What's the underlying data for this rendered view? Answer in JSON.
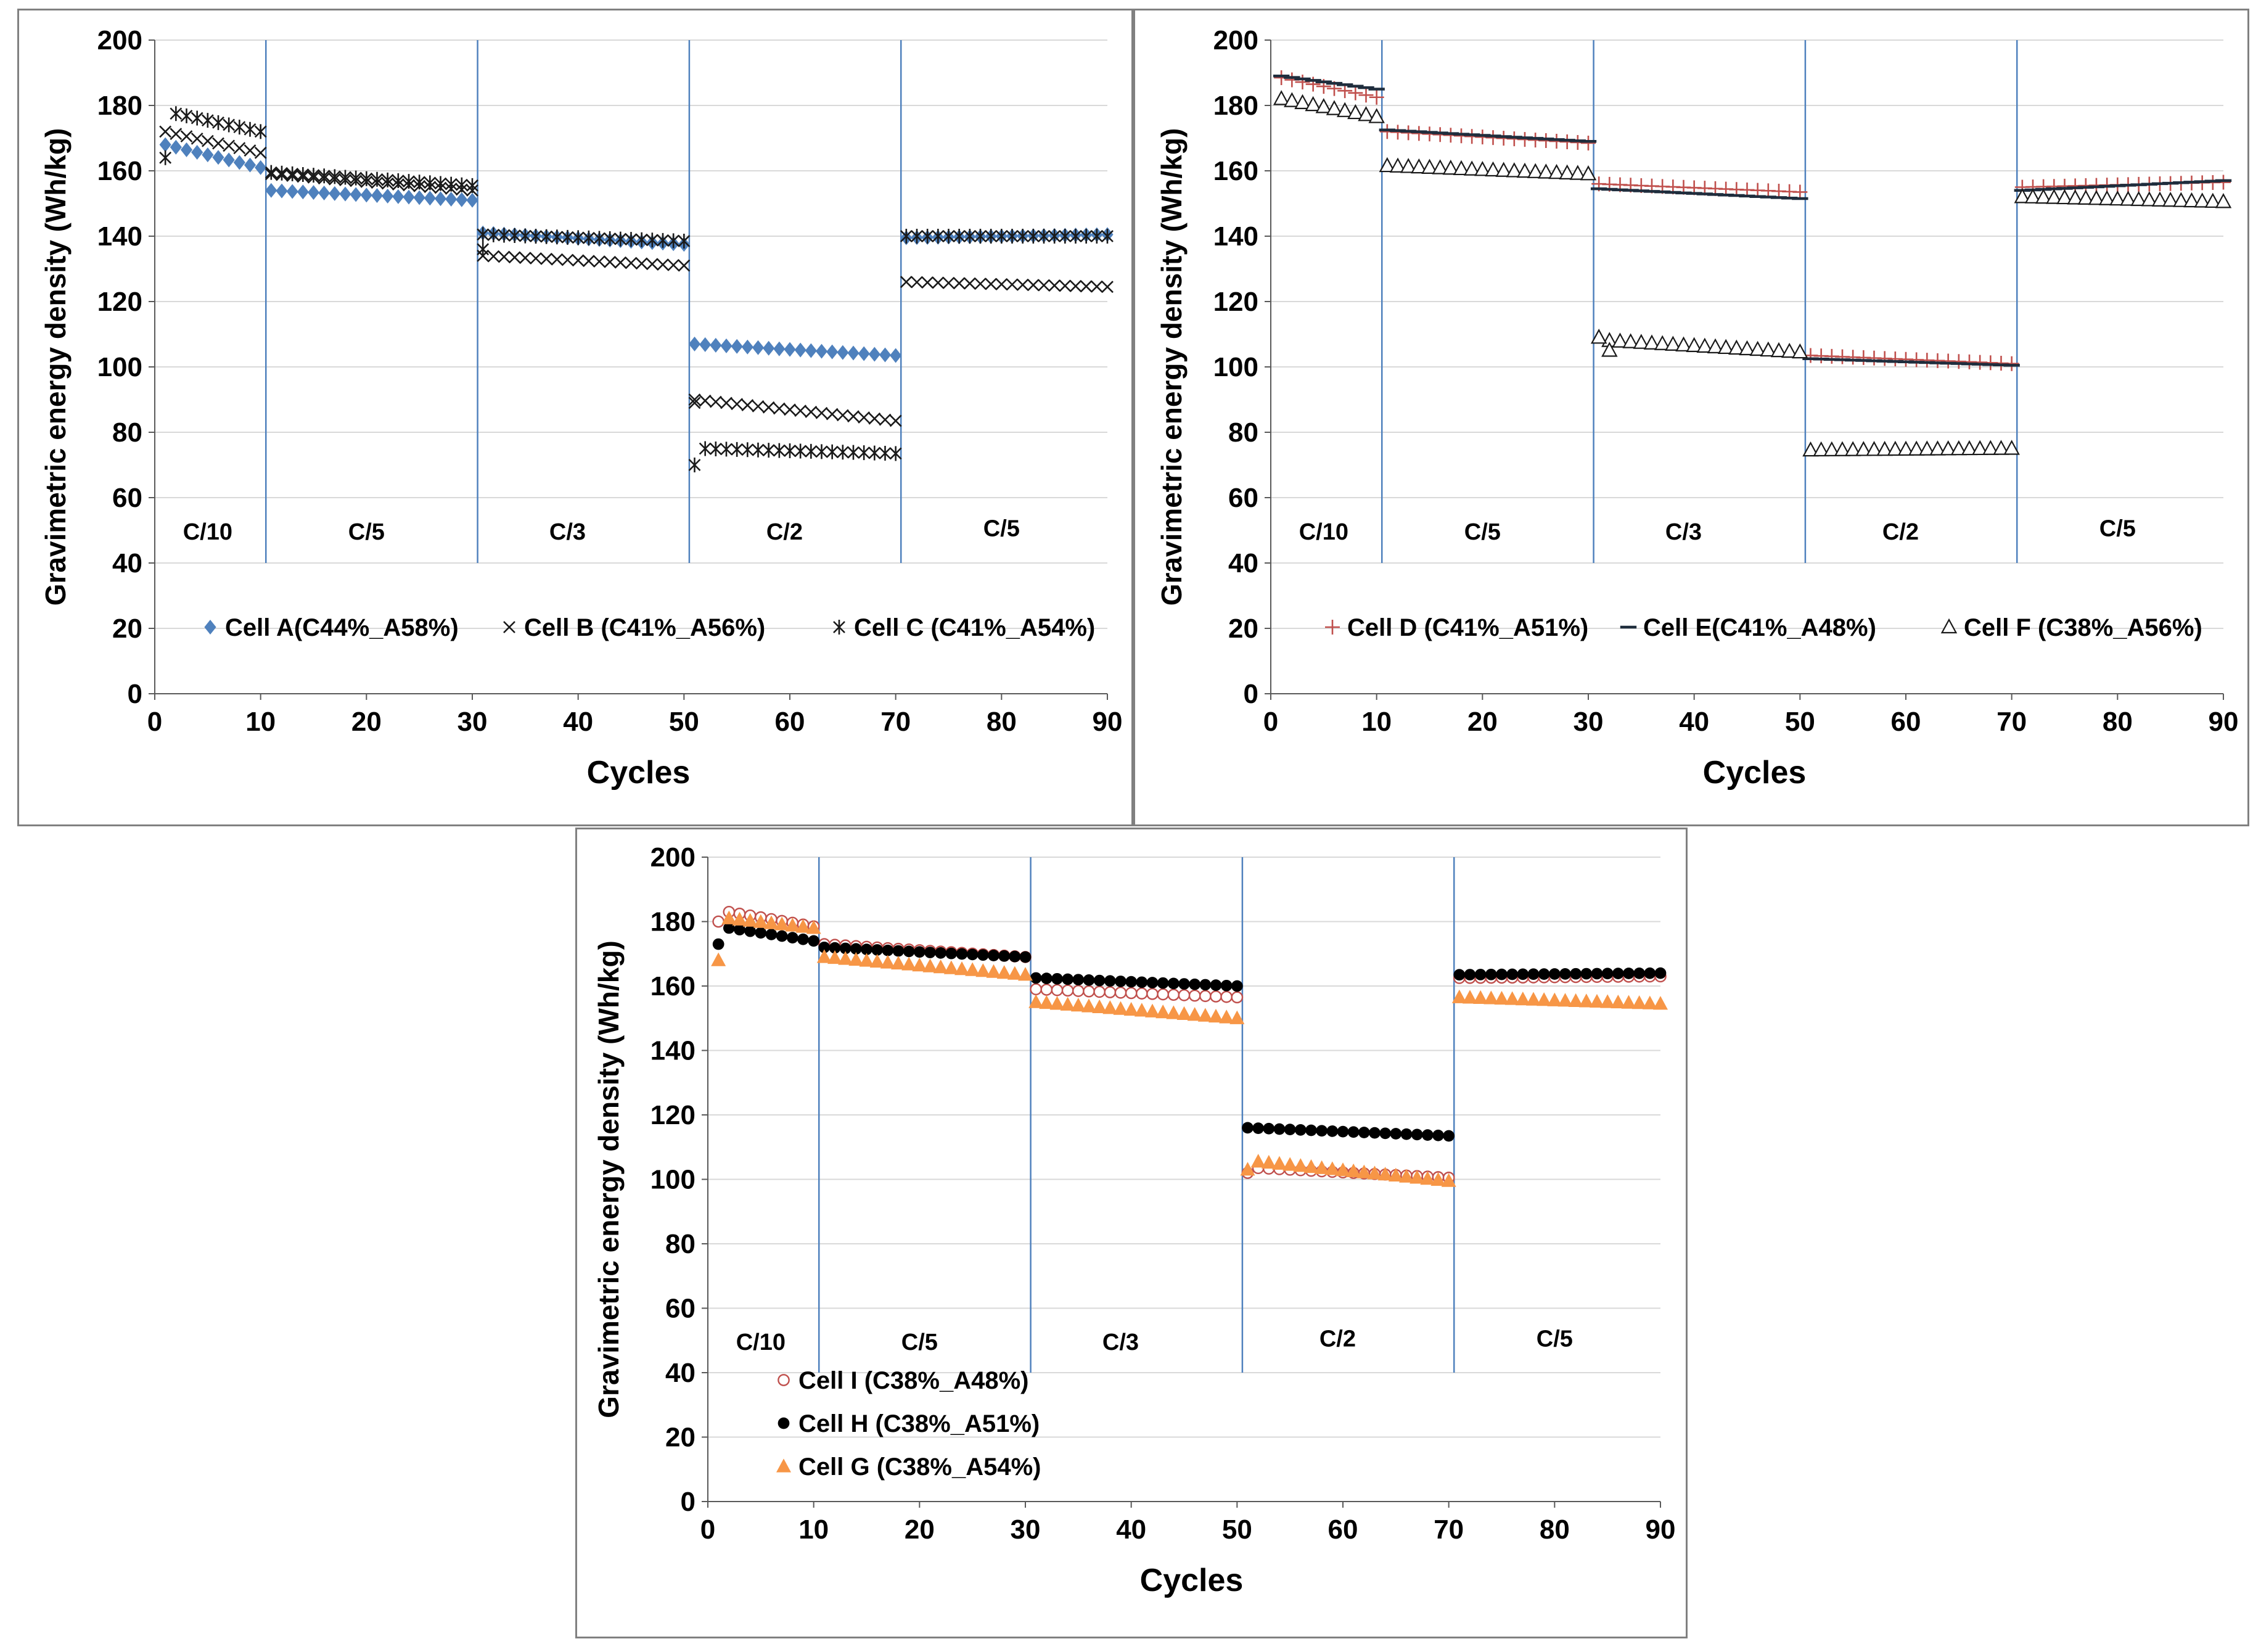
{
  "chart_data": [
    {
      "type": "scatter",
      "xlabel": "Cycles",
      "ylabel": "Gravimetric energy density (Wh/kg)",
      "xlim": [
        0,
        90
      ],
      "ylim": [
        0,
        200
      ],
      "xticks": [
        "0",
        "10",
        "20",
        "30",
        "40",
        "50",
        "60",
        "70",
        "80",
        "90"
      ],
      "yticks": [
        "0",
        "20",
        "40",
        "60",
        "80",
        "100",
        "120",
        "140",
        "160",
        "180",
        "200"
      ],
      "grid": "horizontal",
      "legend_position": "bottom-inside",
      "dividers": [
        10.5,
        30.5,
        50.5,
        70.5
      ],
      "rate_labels": [
        {
          "text": "C/10",
          "x": 5,
          "y": 50
        },
        {
          "text": "C/5",
          "x": 20,
          "y": 50
        },
        {
          "text": "C/3",
          "x": 39,
          "y": 50
        },
        {
          "text": "C/2",
          "x": 59.5,
          "y": 50
        },
        {
          "text": "C/5",
          "x": 80,
          "y": 51
        }
      ],
      "series": [
        {
          "name": "Cell A(C44%_A58%)",
          "marker": "diamond",
          "color": "#4F81BD",
          "segments": [
            [
              1,
              10,
              168,
              161
            ],
            [
              11,
              30,
              154,
              151
            ],
            [
              31,
              50,
              141,
              137.5
            ],
            [
              51,
              70,
              107,
              103.5
            ],
            [
              71,
              90,
              139.5,
              140.5
            ]
          ],
          "outliers": []
        },
        {
          "name": "Cell B (C41%_A56%)",
          "marker": "x",
          "color": "#1a1a1a",
          "segments": [
            [
              1,
              10,
              172,
              165.5
            ],
            [
              11,
              30,
              159,
              154
            ],
            [
              31,
              50,
              134,
              131
            ],
            [
              51,
              70,
              90,
              83.5
            ],
            [
              71,
              90,
              126,
              124.5
            ]
          ],
          "outliers": [
            [
              51,
              89
            ]
          ]
        },
        {
          "name": "Cell C (C41%_A54%)",
          "marker": "star",
          "color": "#1a1a1a",
          "segments": [
            [
              2,
              10,
              177.5,
              172
            ],
            [
              11,
              30,
              159.5,
              155.5
            ],
            [
              31,
              50,
              140.5,
              138.5
            ],
            [
              52,
              70,
              75,
              73.5
            ],
            [
              71,
              90,
              140,
              140
            ]
          ],
          "outliers": [
            [
              1,
              164
            ],
            [
              31,
              136
            ],
            [
              51,
              70
            ]
          ]
        }
      ]
    },
    {
      "type": "scatter",
      "xlabel": "Cycles",
      "ylabel": "Gravimetric energy density (Wh/kg)",
      "xlim": [
        0,
        90
      ],
      "ylim": [
        0,
        200
      ],
      "xticks": [
        "0",
        "10",
        "20",
        "30",
        "40",
        "50",
        "60",
        "70",
        "80",
        "90"
      ],
      "yticks": [
        "0",
        "20",
        "40",
        "60",
        "80",
        "100",
        "120",
        "140",
        "160",
        "180",
        "200"
      ],
      "grid": "horizontal",
      "legend_position": "bottom-inside",
      "dividers": [
        10.5,
        30.5,
        50.5,
        70.5
      ],
      "rate_labels": [
        {
          "text": "C/10",
          "x": 5,
          "y": 50
        },
        {
          "text": "C/5",
          "x": 20,
          "y": 50
        },
        {
          "text": "C/3",
          "x": 39,
          "y": 50
        },
        {
          "text": "C/2",
          "x": 59.5,
          "y": 50
        },
        {
          "text": "C/5",
          "x": 80,
          "y": 51
        }
      ],
      "series": [
        {
          "name": "Cell D (C41%_A51%)",
          "marker": "plus",
          "color": "#C0504D",
          "segments": [
            [
              1,
              10,
              188.5,
              182.5
            ],
            [
              11,
              30,
              172,
              168.5
            ],
            [
              31,
              50,
              156,
              153.5
            ],
            [
              51,
              70,
              103.5,
              101
            ],
            [
              71,
              90,
              155,
              156.5
            ]
          ],
          "outliers": []
        },
        {
          "name": "Cell E(C41%_A48%)",
          "marker": "dash",
          "color": "#1F2D3D",
          "segments": [
            [
              1,
              10,
              189,
              185
            ],
            [
              11,
              30,
              172.5,
              169
            ],
            [
              31,
              50,
              154.5,
              151.5
            ],
            [
              51,
              70,
              102.5,
              100.5
            ],
            [
              71,
              90,
              154,
              157
            ]
          ],
          "outliers": []
        },
        {
          "name": "Cell F (C38%_A56%)",
          "marker": "triangle-open",
          "color": "#1a1a1a",
          "segments": [
            [
              1,
              10,
              182,
              176.5
            ],
            [
              11,
              30,
              161.5,
              159
            ],
            [
              32,
              50,
              108,
              104.5
            ],
            [
              51,
              70,
              74.5,
              75
            ],
            [
              71,
              90,
              152,
              150.5
            ]
          ],
          "outliers": [
            [
              31,
              109
            ],
            [
              32,
              105
            ]
          ]
        }
      ]
    },
    {
      "type": "scatter",
      "xlabel": "Cycles",
      "ylabel": "Gravimetric energy density (Wh/kg)",
      "xlim": [
        0,
        90
      ],
      "ylim": [
        0,
        200
      ],
      "xticks": [
        "0",
        "10",
        "20",
        "30",
        "40",
        "50",
        "60",
        "70",
        "80",
        "90"
      ],
      "yticks": [
        "0",
        "20",
        "40",
        "60",
        "80",
        "100",
        "120",
        "140",
        "160",
        "180",
        "200"
      ],
      "grid": "horizontal",
      "legend_position": "bottom-left-inside",
      "dividers": [
        10.5,
        30.5,
        50.5,
        70.5
      ],
      "rate_labels": [
        {
          "text": "C/10",
          "x": 5,
          "y": 50
        },
        {
          "text": "C/5",
          "x": 20,
          "y": 50
        },
        {
          "text": "C/3",
          "x": 39,
          "y": 50
        },
        {
          "text": "C/2",
          "x": 59.5,
          "y": 51
        },
        {
          "text": "C/5",
          "x": 80,
          "y": 51
        }
      ],
      "series": [
        {
          "name": "Cell I (C38%_A48%)",
          "marker": "circle-open",
          "color": "#C0504D",
          "segments": [
            [
              2,
              10,
              183,
              178.5
            ],
            [
              11,
              30,
              173,
              169
            ],
            [
              31,
              50,
              159,
              156.5
            ],
            [
              52,
              70,
              103.5,
              100.5
            ],
            [
              71,
              90,
              162.5,
              163
            ]
          ],
          "outliers": [
            [
              1,
              180
            ],
            [
              51,
              102
            ]
          ]
        },
        {
          "name": "Cell H (C38%_A51%)",
          "marker": "circle-filled",
          "color": "#000000",
          "segments": [
            [
              2,
              10,
              178,
              174
            ],
            [
              11,
              30,
              172,
              169
            ],
            [
              31,
              50,
              162.5,
              160
            ],
            [
              51,
              70,
              116,
              113.5
            ],
            [
              71,
              90,
              163.5,
              164
            ]
          ],
          "outliers": [
            [
              1,
              173
            ]
          ]
        },
        {
          "name": "Cell G (C38%_A54%)",
          "marker": "triangle-filled",
          "color": "#F79646",
          "segments": [
            [
              2,
              10,
              181,
              178
            ],
            [
              11,
              30,
              169,
              163.5
            ],
            [
              31,
              50,
              155,
              150
            ],
            [
              52,
              70,
              105.5,
              99.5
            ],
            [
              71,
              90,
              156.5,
              154.5
            ]
          ],
          "outliers": [
            [
              1,
              168
            ],
            [
              51,
              103
            ]
          ]
        }
      ]
    }
  ]
}
